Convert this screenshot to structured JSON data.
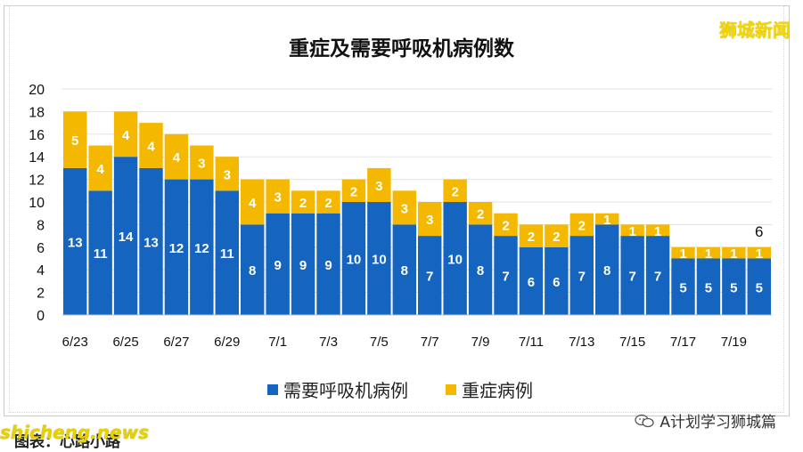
{
  "watermark": "狮城新闻",
  "footer": {
    "source_label": "A计划学习狮城篇",
    "caption": "图表：心路小路",
    "site": "shicheng.news"
  },
  "colors": {
    "resp": "#1565c0",
    "severe": "#f5b800"
  },
  "chart_data": {
    "type": "bar",
    "stacked": true,
    "title": "重症及需要呼吸机病例数",
    "categories": [
      "6/23",
      "6/24",
      "6/25",
      "6/26",
      "6/27",
      "6/28",
      "6/29",
      "6/30",
      "7/1",
      "7/2",
      "7/3",
      "7/4",
      "7/5",
      "7/6",
      "7/7",
      "7/8",
      "7/9",
      "7/10",
      "7/11",
      "7/12",
      "7/13",
      "7/14",
      "7/15",
      "7/16",
      "7/17",
      "7/18",
      "7/19",
      "7/20"
    ],
    "x_tick_labels": [
      "6/23",
      "",
      "6/25",
      "",
      "6/27",
      "",
      "6/29",
      "",
      "7/1",
      "",
      "7/3",
      "",
      "7/5",
      "",
      "7/7",
      "",
      "7/9",
      "",
      "7/11",
      "",
      "7/13",
      "",
      "7/15",
      "",
      "7/17",
      "",
      "7/19",
      ""
    ],
    "series": [
      {
        "name": "需要呼吸机病例",
        "color": "#1565c0",
        "values": [
          13,
          11,
          14,
          13,
          12,
          12,
          11,
          8,
          9,
          9,
          9,
          10,
          10,
          8,
          7,
          10,
          8,
          7,
          6,
          6,
          7,
          8,
          7,
          7,
          5,
          5,
          5,
          5
        ]
      },
      {
        "name": "重症病例",
        "color": "#f5b800",
        "values": [
          5,
          4,
          4,
          4,
          4,
          3,
          3,
          4,
          3,
          2,
          2,
          2,
          3,
          3,
          3,
          2,
          2,
          2,
          2,
          2,
          2,
          1,
          1,
          1,
          1,
          1,
          1,
          1
        ]
      }
    ],
    "annotations": [
      {
        "category": "7/20",
        "text": "6"
      }
    ],
    "ylim": [
      0,
      20
    ],
    "y_ticks": [
      0,
      2,
      4,
      6,
      8,
      10,
      12,
      14,
      16,
      18,
      20
    ],
    "grid": true,
    "legend": "bottom"
  }
}
